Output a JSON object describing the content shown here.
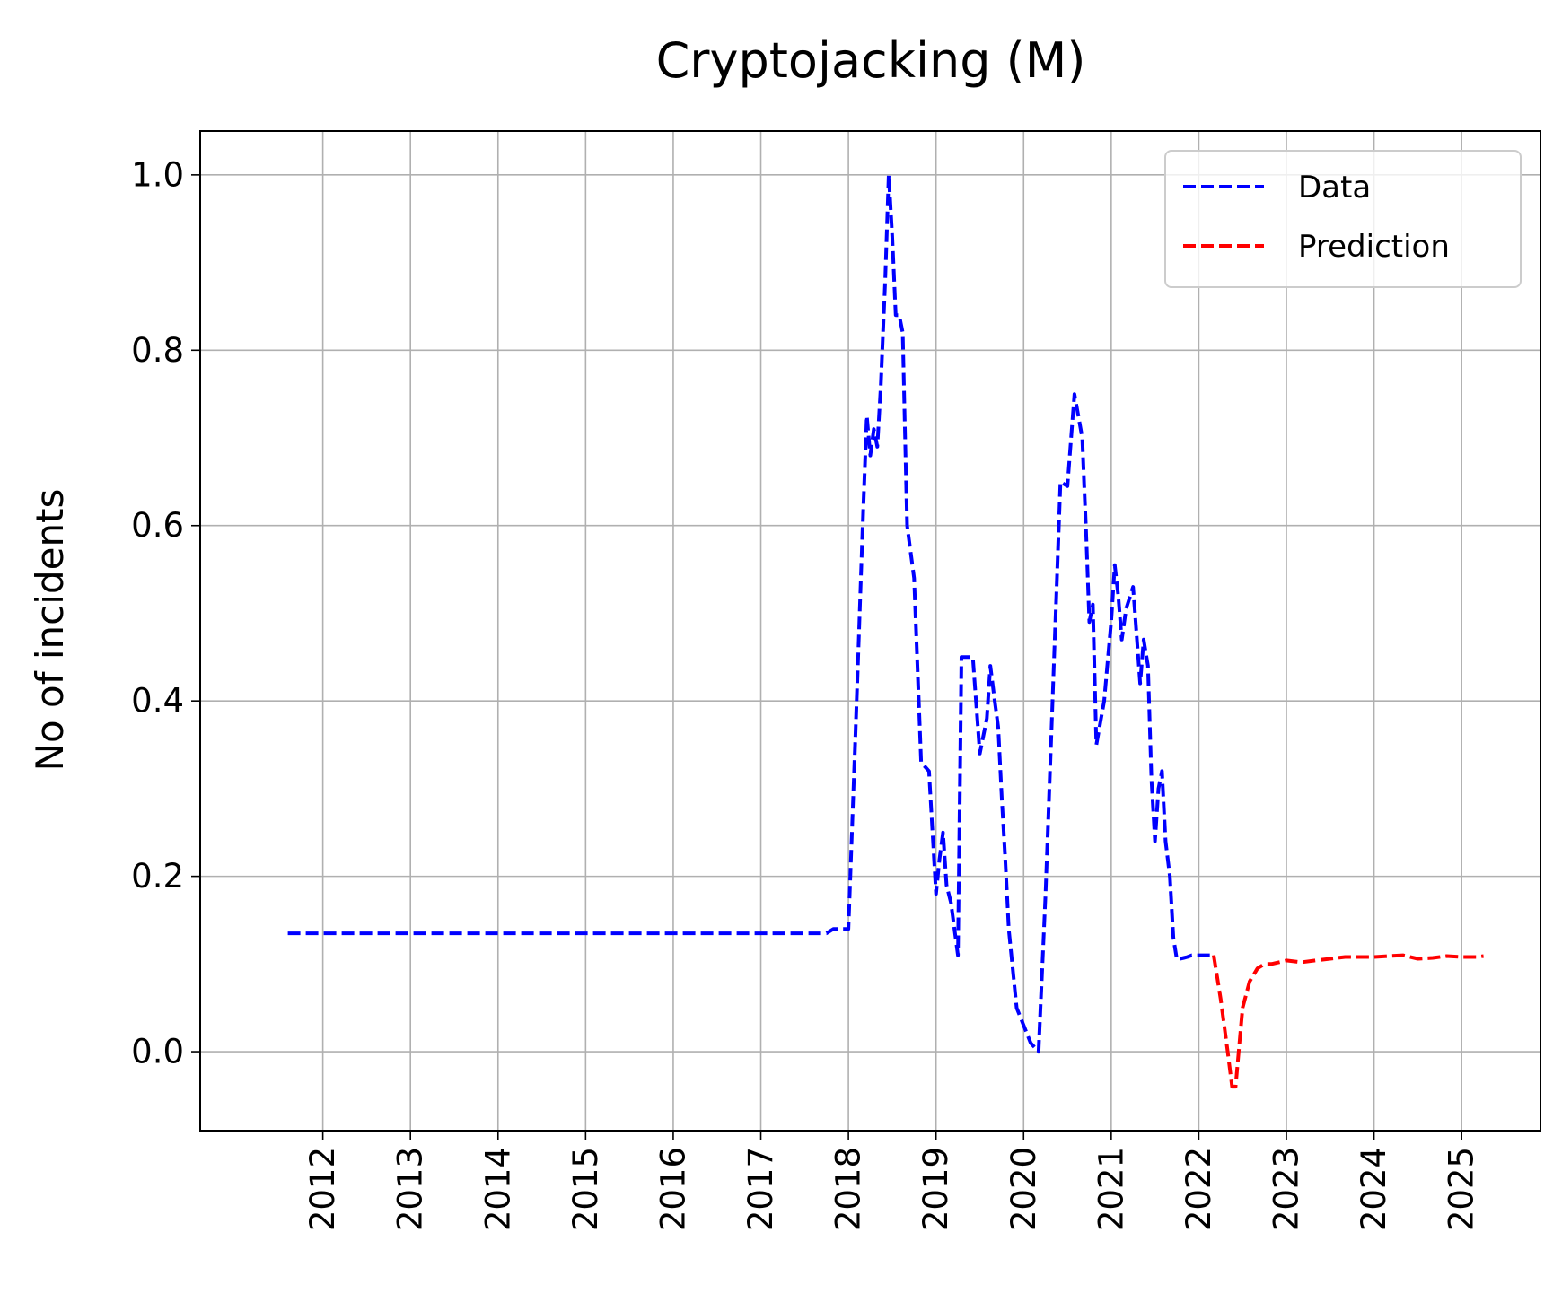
{
  "chart_data": {
    "type": "line",
    "title": "Cryptojacking (M)",
    "xlabel": "",
    "ylabel": "No of incidents",
    "xlim": [
      2010.6,
      2025.9
    ],
    "ylim": [
      -0.09,
      1.05
    ],
    "x_ticks": [
      "2012",
      "2013",
      "2014",
      "2015",
      "2016",
      "2017",
      "2018",
      "2019",
      "2020",
      "2021",
      "2022",
      "2023",
      "2024",
      "2025"
    ],
    "y_ticks": [
      "0.0",
      "0.2",
      "0.4",
      "0.6",
      "0.8",
      "1.0"
    ],
    "grid": true,
    "legend_position": "upper right",
    "series": [
      {
        "name": "Data",
        "color": "#0000ff",
        "style": "dashed",
        "x": [
          2011.6,
          2012.0,
          2013.0,
          2014.0,
          2015.0,
          2016.0,
          2017.0,
          2017.75,
          2017.83,
          2017.92,
          2018.0,
          2018.08,
          2018.17,
          2018.21,
          2018.25,
          2018.29,
          2018.33,
          2018.37,
          2018.42,
          2018.46,
          2018.5,
          2018.54,
          2018.58,
          2018.62,
          2018.67,
          2018.75,
          2018.83,
          2018.92,
          2019.0,
          2019.04,
          2019.08,
          2019.12,
          2019.17,
          2019.21,
          2019.25,
          2019.29,
          2019.33,
          2019.42,
          2019.5,
          2019.58,
          2019.62,
          2019.67,
          2019.71,
          2019.75,
          2019.79,
          2019.83,
          2019.92,
          2020.0,
          2020.08,
          2020.17,
          2020.25,
          2020.33,
          2020.42,
          2020.5,
          2020.58,
          2020.67,
          2020.71,
          2020.75,
          2020.79,
          2020.83,
          2020.92,
          2021.0,
          2021.04,
          2021.08,
          2021.12,
          2021.17,
          2021.25,
          2021.33,
          2021.37,
          2021.42,
          2021.46,
          2021.5,
          2021.54,
          2021.58,
          2021.62,
          2021.67,
          2021.71,
          2021.75,
          2021.83,
          2021.87,
          2021.92,
          2022.0,
          2022.08,
          2022.17
        ],
        "values": [
          0.135,
          0.135,
          0.135,
          0.135,
          0.135,
          0.135,
          0.135,
          0.135,
          0.14,
          0.14,
          0.14,
          0.36,
          0.62,
          0.725,
          0.68,
          0.71,
          0.69,
          0.76,
          0.88,
          1.0,
          0.93,
          0.84,
          0.84,
          0.82,
          0.6,
          0.54,
          0.33,
          0.32,
          0.18,
          0.22,
          0.25,
          0.19,
          0.17,
          0.14,
          0.11,
          0.45,
          0.45,
          0.45,
          0.34,
          0.38,
          0.44,
          0.4,
          0.37,
          0.29,
          0.22,
          0.14,
          0.05,
          0.03,
          0.01,
          0.0,
          0.18,
          0.4,
          0.65,
          0.645,
          0.75,
          0.7,
          0.6,
          0.49,
          0.51,
          0.35,
          0.4,
          0.49,
          0.555,
          0.52,
          0.47,
          0.505,
          0.53,
          0.42,
          0.47,
          0.44,
          0.31,
          0.24,
          0.3,
          0.32,
          0.24,
          0.2,
          0.13,
          0.105,
          0.107,
          0.108,
          0.11,
          0.11,
          0.11,
          0.11
        ]
      },
      {
        "name": "Prediction",
        "color": "#ff0000",
        "style": "dashed",
        "x": [
          2022.17,
          2022.25,
          2022.33,
          2022.38,
          2022.42,
          2022.5,
          2022.58,
          2022.67,
          2022.75,
          2022.83,
          2023.0,
          2023.17,
          2023.33,
          2023.5,
          2023.67,
          2023.83,
          2024.0,
          2024.17,
          2024.33,
          2024.5,
          2024.67,
          2024.83,
          2025.0,
          2025.17,
          2025.25
        ],
        "values": [
          0.11,
          0.06,
          0.0,
          -0.04,
          -0.04,
          0.05,
          0.08,
          0.095,
          0.1,
          0.1,
          0.104,
          0.102,
          0.104,
          0.106,
          0.108,
          0.108,
          0.108,
          0.109,
          0.11,
          0.106,
          0.107,
          0.109,
          0.108,
          0.108,
          0.109
        ]
      }
    ]
  }
}
